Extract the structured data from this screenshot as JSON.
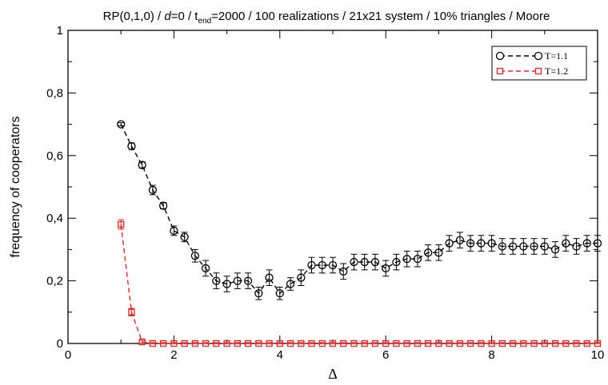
{
  "chart_data": {
    "type": "line",
    "title": {
      "prefix": "RP(0,1,0) / ",
      "d_var": "d",
      "d_rest": "=0 / t",
      "t_sub": "end",
      "suffix": "=2000 / 100 realizations / 21x21 system / 10% triangles / Moore"
    },
    "xlabel": "Δ",
    "ylabel": "frequency of cooperators",
    "xlim": [
      0,
      10
    ],
    "ylim": [
      0,
      1
    ],
    "xticks": [
      0,
      2,
      4,
      6,
      8,
      10
    ],
    "xtick_labels": [
      "0",
      "2",
      "4",
      "6",
      "8",
      "10"
    ],
    "yticks": [
      0,
      0.2,
      0.4,
      0.6,
      0.8,
      1
    ],
    "ytick_labels": [
      "0",
      "0,2",
      "0,4",
      "0,6",
      "0,8",
      "1"
    ],
    "legend_position": "top-right",
    "grid": false,
    "series": [
      {
        "name": "T=1.1",
        "color": "#000000",
        "marker": "circle",
        "x": [
          1.0,
          1.2,
          1.4,
          1.6,
          1.8,
          2.0,
          2.2,
          2.4,
          2.6,
          2.8,
          3.0,
          3.2,
          3.4,
          3.6,
          3.8,
          4.0,
          4.2,
          4.4,
          4.6,
          4.8,
          5.0,
          5.2,
          5.4,
          5.6,
          5.8,
          6.0,
          6.2,
          6.4,
          6.6,
          6.8,
          7.0,
          7.2,
          7.4,
          7.6,
          7.8,
          8.0,
          8.2,
          8.4,
          8.6,
          8.8,
          9.0,
          9.2,
          9.4,
          9.6,
          9.8,
          10.0
        ],
        "y": [
          0.7,
          0.63,
          0.57,
          0.49,
          0.44,
          0.36,
          0.34,
          0.28,
          0.24,
          0.2,
          0.19,
          0.2,
          0.2,
          0.16,
          0.21,
          0.16,
          0.19,
          0.21,
          0.25,
          0.25,
          0.25,
          0.23,
          0.26,
          0.26,
          0.26,
          0.24,
          0.26,
          0.27,
          0.27,
          0.29,
          0.29,
          0.32,
          0.33,
          0.32,
          0.32,
          0.32,
          0.31,
          0.31,
          0.31,
          0.31,
          0.31,
          0.3,
          0.32,
          0.31,
          0.32,
          0.32
        ],
        "err": [
          0.005,
          0.01,
          0.01,
          0.015,
          0.01,
          0.015,
          0.015,
          0.02,
          0.025,
          0.025,
          0.025,
          0.025,
          0.025,
          0.02,
          0.025,
          0.02,
          0.02,
          0.025,
          0.025,
          0.025,
          0.025,
          0.025,
          0.025,
          0.025,
          0.025,
          0.025,
          0.025,
          0.025,
          0.025,
          0.025,
          0.025,
          0.025,
          0.025,
          0.025,
          0.025,
          0.025,
          0.025,
          0.025,
          0.025,
          0.025,
          0.025,
          0.025,
          0.025,
          0.025,
          0.025,
          0.025
        ]
      },
      {
        "name": "T=1.2",
        "color": "#ee2222",
        "marker": "square",
        "x": [
          1.0,
          1.2,
          1.4,
          1.6,
          1.8,
          2.0,
          2.2,
          2.4,
          2.6,
          2.8,
          3.0,
          3.2,
          3.4,
          3.6,
          3.8,
          4.0,
          4.2,
          4.4,
          4.6,
          4.8,
          5.0,
          5.2,
          5.4,
          5.6,
          5.8,
          6.0,
          6.2,
          6.4,
          6.6,
          6.8,
          7.0,
          7.2,
          7.4,
          7.6,
          7.8,
          8.0,
          8.2,
          8.4,
          8.6,
          8.8,
          9.0,
          9.2,
          9.4,
          9.6,
          9.8,
          10.0
        ],
        "y": [
          0.38,
          0.1,
          0.005,
          0,
          0,
          0,
          0,
          0,
          0,
          0,
          0,
          0,
          0,
          0,
          0,
          0,
          0,
          0,
          0,
          0,
          0,
          0,
          0,
          0,
          0,
          0,
          0,
          0,
          0,
          0,
          0,
          0,
          0,
          0,
          0,
          0,
          0,
          0,
          0,
          0,
          0,
          0,
          0,
          0,
          0,
          0
        ],
        "err": [
          0.015,
          0.012,
          0.005,
          0.003,
          0.003,
          0.003,
          0.003,
          0.003,
          0.003,
          0.003,
          0.003,
          0.003,
          0.003,
          0.003,
          0.003,
          0.003,
          0.003,
          0.003,
          0.003,
          0.003,
          0.003,
          0.003,
          0.003,
          0.003,
          0.003,
          0.003,
          0.003,
          0.003,
          0.003,
          0.003,
          0.003,
          0.003,
          0.003,
          0.003,
          0.003,
          0.003,
          0.003,
          0.003,
          0.003,
          0.003,
          0.003,
          0.003,
          0.003,
          0.003,
          0.003,
          0.003
        ]
      }
    ]
  }
}
